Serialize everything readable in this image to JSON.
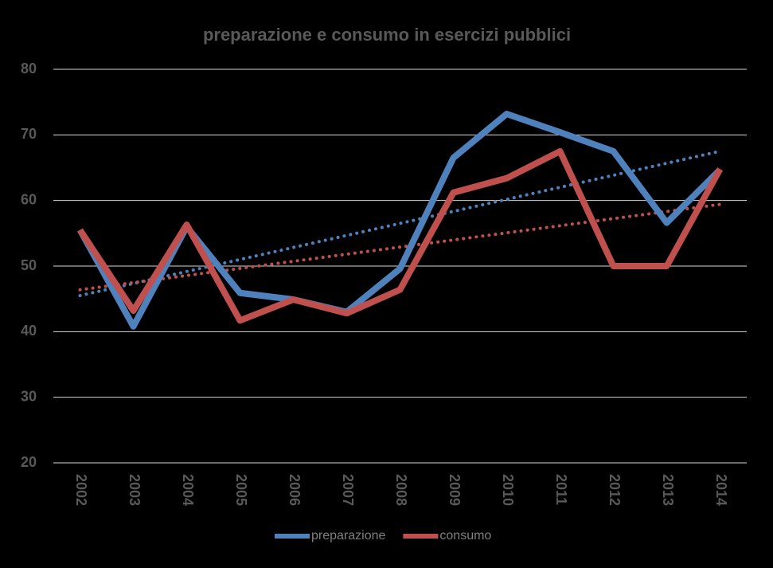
{
  "chart_data": {
    "type": "line",
    "title": "preparazione e consumo in esercizi pubblici",
    "categories": [
      "2002",
      "2003",
      "2004",
      "2005",
      "2006",
      "2007",
      "2008",
      "2009",
      "2010",
      "2011",
      "2012",
      "2013",
      "2014"
    ],
    "series": [
      {
        "name": "preparazione",
        "color": "#4f81bd",
        "trendline": true,
        "values": [
          55.5,
          40.8,
          56,
          45.9,
          44.9,
          43,
          49.6,
          66.5,
          73.2,
          70.4,
          67.5,
          56.6,
          64.7
        ]
      },
      {
        "name": "consumo",
        "color": "#c0504d",
        "trendline": true,
        "values": [
          55.5,
          43.2,
          56.3,
          41.7,
          44.9,
          42.8,
          46.4,
          61.2,
          63.4,
          67.5,
          50,
          50,
          64.8
        ]
      }
    ],
    "ylim": [
      20,
      80
    ],
    "yticks": [
      20,
      30,
      40,
      50,
      60,
      70,
      80
    ],
    "grid": true,
    "legend": "bottom"
  }
}
